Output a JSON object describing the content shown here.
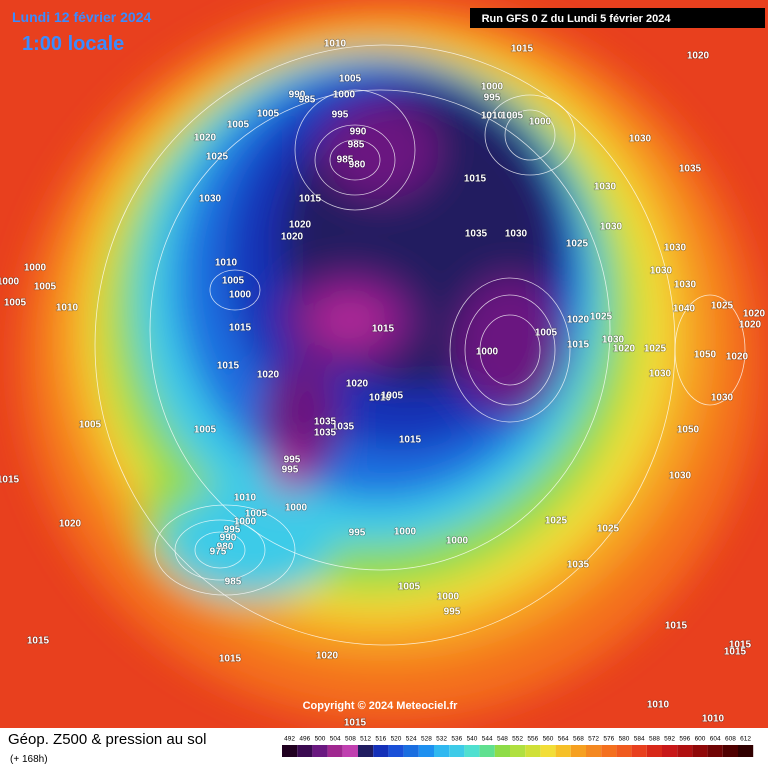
{
  "header": {
    "date": "Lundi 12 février 2024",
    "time": "1:00 locale",
    "run": "Run GFS 0 Z du Lundi 5 février 2024"
  },
  "map": {
    "copyright": "Copyright © 2024 Meteociel.fr",
    "pressure_labels": [
      "1010",
      "1015",
      "1020",
      "1005",
      "990",
      "985",
      "1000",
      "1005",
      "1005",
      "1020",
      "1025",
      "995",
      "990",
      "985",
      "985",
      "980",
      "1000",
      "995",
      "1010",
      "1005",
      "1000",
      "1030",
      "1035",
      "1030",
      "1015",
      "1015",
      "1030",
      "1020",
      "1020",
      "1035",
      "1030",
      "1025",
      "1030",
      "1030",
      "1030",
      "1030",
      "1000",
      "1000",
      "1005",
      "1005",
      "1010",
      "1010",
      "1005",
      "1000",
      "1015",
      "1040",
      "1025",
      "1020",
      "1020",
      "1020",
      "1025",
      "1005",
      "1015",
      "1000",
      "1030",
      "1020",
      "1025",
      "1050",
      "1020",
      "1015",
      "1015",
      "1020",
      "1020",
      "1010",
      "1005",
      "1030",
      "1030",
      "1050",
      "1005",
      "1005",
      "1035",
      "1035",
      "1035",
      "1015",
      "995",
      "995",
      "1030",
      "1015",
      "1010",
      "1000",
      "1005",
      "1000",
      "995",
      "990",
      "980",
      "975",
      "985",
      "995",
      "1000",
      "1000",
      "1025",
      "1025",
      "1035",
      "1020",
      "1005",
      "1000",
      "995",
      "1015",
      "1015",
      "1015",
      "1015",
      "1015",
      "1020",
      "1010",
      "1010",
      "1015"
    ]
  },
  "footer": {
    "title": "Géop. Z500 & pression au sol",
    "lead": "(+ 168h)",
    "scale": [
      492,
      496,
      500,
      504,
      508,
      512,
      516,
      520,
      524,
      528,
      532,
      536,
      540,
      544,
      548,
      552,
      556,
      560,
      564,
      568,
      572,
      576,
      580,
      584,
      588,
      592,
      596,
      600,
      604,
      608,
      612
    ]
  }
}
